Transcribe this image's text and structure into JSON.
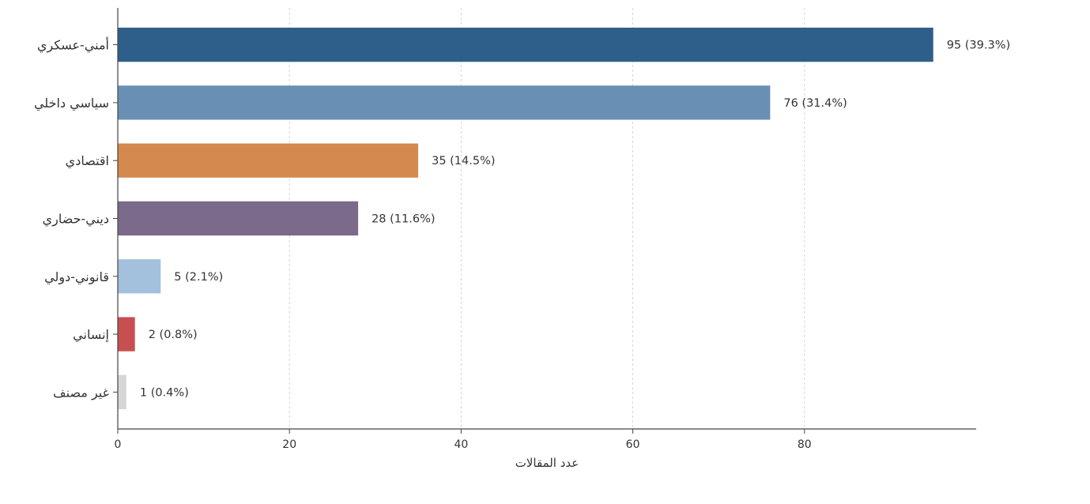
{
  "chart_data": {
    "type": "bar",
    "orientation": "horizontal",
    "title": "",
    "xlabel": "عدد المقالات",
    "ylabel": "",
    "xlim": [
      0,
      100
    ],
    "xticks": [
      0,
      20,
      40,
      60,
      80
    ],
    "grid": "vertical dashed",
    "categories": [
      "أمني-عسكري",
      "سياسي داخلي",
      "اقتصادي",
      "ديني-حضاري",
      "قانوني-دولي",
      "إنساني",
      "غير مصنف"
    ],
    "values": [
      95,
      76,
      35,
      28,
      5,
      2,
      1
    ],
    "labels": [
      "95  (39.3%)",
      "76  (31.4%)",
      "35  (14.5%)",
      "28  (11.6%)",
      "5  (2.1%)",
      "2  (0.8%)",
      "1  (0.4%)"
    ],
    "colors": [
      "#2e5f8a",
      "#6a8fb5",
      "#d4894f",
      "#7b6a8a",
      "#a3c1dd",
      "#c74f52",
      "#d6d6d6"
    ]
  }
}
